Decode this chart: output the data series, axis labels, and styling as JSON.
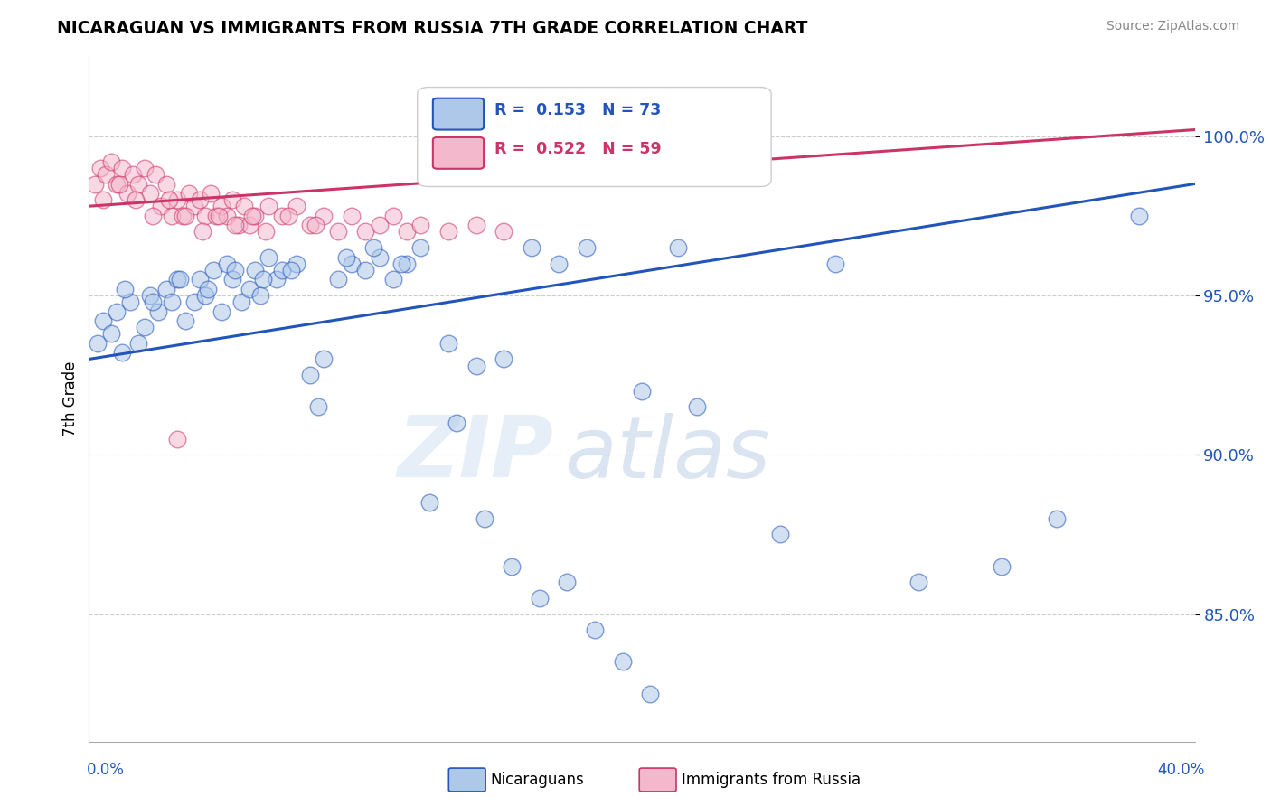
{
  "title": "NICARAGUAN VS IMMIGRANTS FROM RUSSIA 7TH GRADE CORRELATION CHART",
  "source": "Source: ZipAtlas.com",
  "ylabel": "7th Grade",
  "xmin": 0.0,
  "xmax": 40.0,
  "ymin": 81.0,
  "ymax": 102.5,
  "yticks": [
    85.0,
    90.0,
    95.0,
    100.0
  ],
  "ytick_labels": [
    "85.0%",
    "90.0%",
    "95.0%",
    "100.0%"
  ],
  "blue_R": 0.153,
  "blue_N": 73,
  "pink_R": 0.522,
  "pink_N": 59,
  "blue_color": "#adc8e8",
  "pink_color": "#f4b8cc",
  "blue_line_color": "#2255bb",
  "pink_line_color": "#cc3366",
  "legend_label_blue": "Nicaraguans",
  "legend_label_pink": "Immigrants from Russia",
  "watermark_zip": "ZIP",
  "watermark_atlas": "atlas",
  "blue_scatter_x": [
    0.3,
    0.5,
    0.8,
    1.0,
    1.2,
    1.5,
    1.8,
    2.0,
    2.2,
    2.5,
    2.8,
    3.0,
    3.2,
    3.5,
    3.8,
    4.0,
    4.2,
    4.5,
    4.8,
    5.0,
    5.2,
    5.5,
    5.8,
    6.0,
    6.2,
    6.5,
    6.8,
    7.0,
    7.5,
    8.0,
    8.5,
    9.0,
    9.5,
    10.0,
    10.5,
    11.0,
    11.5,
    12.0,
    13.0,
    14.0,
    15.0,
    16.0,
    17.0,
    18.0,
    20.0,
    22.0,
    25.0,
    27.0,
    30.0,
    33.0,
    35.0,
    38.0,
    1.3,
    2.3,
    3.3,
    4.3,
    5.3,
    6.3,
    7.3,
    8.3,
    9.3,
    10.3,
    11.3,
    12.3,
    13.3,
    14.3,
    15.3,
    16.3,
    17.3,
    18.3,
    19.3,
    20.3,
    21.3
  ],
  "blue_scatter_y": [
    93.5,
    94.2,
    93.8,
    94.5,
    93.2,
    94.8,
    93.5,
    94.0,
    95.0,
    94.5,
    95.2,
    94.8,
    95.5,
    94.2,
    94.8,
    95.5,
    95.0,
    95.8,
    94.5,
    96.0,
    95.5,
    94.8,
    95.2,
    95.8,
    95.0,
    96.2,
    95.5,
    95.8,
    96.0,
    92.5,
    93.0,
    95.5,
    96.0,
    95.8,
    96.2,
    95.5,
    96.0,
    96.5,
    93.5,
    92.8,
    93.0,
    96.5,
    96.0,
    96.5,
    92.0,
    91.5,
    87.5,
    96.0,
    86.0,
    86.5,
    88.0,
    97.5,
    95.2,
    94.8,
    95.5,
    95.2,
    95.8,
    95.5,
    95.8,
    91.5,
    96.2,
    96.5,
    96.0,
    88.5,
    91.0,
    88.0,
    86.5,
    85.5,
    86.0,
    84.5,
    83.5,
    82.5,
    96.5
  ],
  "pink_scatter_x": [
    0.2,
    0.4,
    0.6,
    0.8,
    1.0,
    1.2,
    1.4,
    1.6,
    1.8,
    2.0,
    2.2,
    2.4,
    2.6,
    2.8,
    3.0,
    3.2,
    3.4,
    3.6,
    3.8,
    4.0,
    4.2,
    4.4,
    4.6,
    4.8,
    5.0,
    5.2,
    5.4,
    5.6,
    5.8,
    6.0,
    6.5,
    7.0,
    7.5,
    8.0,
    8.5,
    9.0,
    9.5,
    10.0,
    10.5,
    11.0,
    11.5,
    12.0,
    13.0,
    14.0,
    15.0,
    0.5,
    1.1,
    1.7,
    2.3,
    2.9,
    3.5,
    4.1,
    4.7,
    5.3,
    5.9,
    6.4,
    7.2,
    8.2,
    3.2
  ],
  "pink_scatter_y": [
    98.5,
    99.0,
    98.8,
    99.2,
    98.5,
    99.0,
    98.2,
    98.8,
    98.5,
    99.0,
    98.2,
    98.8,
    97.8,
    98.5,
    97.5,
    98.0,
    97.5,
    98.2,
    97.8,
    98.0,
    97.5,
    98.2,
    97.5,
    97.8,
    97.5,
    98.0,
    97.2,
    97.8,
    97.2,
    97.5,
    97.8,
    97.5,
    97.8,
    97.2,
    97.5,
    97.0,
    97.5,
    97.0,
    97.2,
    97.5,
    97.0,
    97.2,
    97.0,
    97.2,
    97.0,
    98.0,
    98.5,
    98.0,
    97.5,
    98.0,
    97.5,
    97.0,
    97.5,
    97.2,
    97.5,
    97.0,
    97.5,
    97.2,
    90.5
  ]
}
